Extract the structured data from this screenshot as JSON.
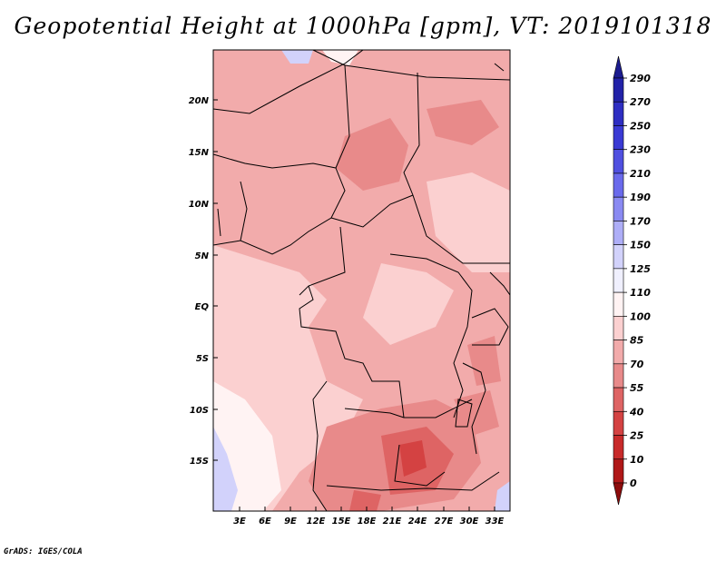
{
  "title": "Geopotential Height at 1000hPa [gpm], VT: 2019101318",
  "credit": "GrADS: IGES/COLA",
  "map": {
    "lat_labels": [
      "20N",
      "15N",
      "10N",
      "5N",
      "EQ",
      "5S",
      "10S",
      "15S"
    ],
    "lon_labels": [
      "3E",
      "6E",
      "9E",
      "12E",
      "15E",
      "18E",
      "21E",
      "24E",
      "27E",
      "30E",
      "33E"
    ]
  },
  "colorbar": {
    "labels": [
      "290",
      "270",
      "250",
      "230",
      "210",
      "190",
      "170",
      "150",
      "125",
      "110",
      "100",
      "85",
      "70",
      "55",
      "40",
      "25",
      "10",
      "0"
    ],
    "colors": [
      "#1c1c8f",
      "#2222a8",
      "#2e2ec2",
      "#3a3ad4",
      "#5050e0",
      "#6a6aec",
      "#8a8af2",
      "#aeaef7",
      "#d2d2fb",
      "#f0f0fe",
      "#fff3f3",
      "#fbd0d0",
      "#f2abab",
      "#e88a8a",
      "#de6464",
      "#d44242",
      "#c82a2a",
      "#b01818",
      "#8c0c0c"
    ]
  }
}
